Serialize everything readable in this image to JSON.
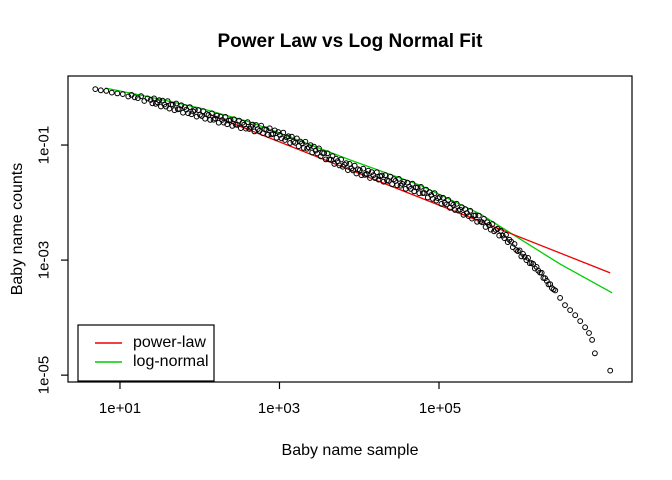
{
  "chart_data": {
    "type": "scatter",
    "title": "Power Law vs Log Normal Fit",
    "xlabel": "Baby name sample",
    "ylabel": "Baby name counts",
    "x_scale": "log",
    "y_scale": "log",
    "x_range": [
      2.23,
      26300000
    ],
    "y_range": [
      7.6e-06,
      1.585
    ],
    "grid": false,
    "x_ticks": [
      {
        "label": "1e+01",
        "value": 10
      },
      {
        "label": "1e+03",
        "value": 1000
      },
      {
        "label": "1e+05",
        "value": 100000
      }
    ],
    "y_ticks": [
      {
        "label": "1e-01",
        "value": 0.1
      },
      {
        "label": "1e-03",
        "value": 0.001
      },
      {
        "label": "1e-05",
        "value": 1e-05
      }
    ],
    "series": [
      {
        "name": "data",
        "type": "scatter",
        "marker": "open-circle",
        "color": "#000000",
        "points": [
          [
            4.9,
            0.94
          ],
          [
            6.5,
            0.87
          ],
          [
            8.7,
            0.8
          ],
          [
            12,
            0.74
          ],
          [
            18,
            0.66
          ],
          [
            32,
            0.54
          ],
          [
            56,
            0.44
          ],
          [
            100,
            0.35
          ],
          [
            180,
            0.28
          ],
          [
            320,
            0.23
          ],
          [
            570,
            0.19
          ],
          [
            1000,
            0.15
          ],
          [
            1800,
            0.108
          ],
          [
            2800,
            0.082
          ],
          [
            4300,
            0.059
          ],
          [
            6600,
            0.045
          ],
          [
            10000,
            0.035
          ],
          [
            18000,
            0.028
          ],
          [
            32000,
            0.022
          ],
          [
            58000,
            0.0165
          ],
          [
            100000,
            0.0115
          ],
          [
            183000,
            0.0077
          ],
          [
            330000,
            0.005
          ],
          [
            580000,
            0.003
          ],
          [
            780000,
            0.0021
          ],
          [
            1000000,
            0.0014
          ],
          [
            1400000,
            0.00092
          ],
          [
            1850000,
            0.00062
          ],
          [
            2300000,
            0.00041
          ],
          [
            2850000,
            0.00029
          ],
          [
            3300000,
            0.00022
          ],
          [
            3800000,
            0.000165
          ],
          [
            4400000,
            0.000135
          ],
          [
            5100000,
            0.00011
          ],
          [
            5900000,
            8.7e-05
          ],
          [
            6800000,
            6.8e-05
          ],
          [
            7600000,
            5.4e-05
          ],
          [
            8300000,
            4.1e-05
          ],
          [
            9000000,
            2.4e-05
          ],
          [
            14000000,
            1.2e-05
          ]
        ]
      },
      {
        "name": "power-law",
        "type": "line",
        "color": "#EE0000",
        "points": [
          [
            135,
            0.34
          ],
          [
            14000000,
            0.0006
          ]
        ]
      },
      {
        "name": "log-normal",
        "type": "line",
        "color": "#00CD00",
        "points": [
          [
            6.5,
            0.98
          ],
          [
            24,
            0.68
          ],
          [
            100,
            0.44
          ],
          [
            430,
            0.25
          ],
          [
            1350,
            0.138
          ],
          [
            7700,
            0.055
          ],
          [
            58000,
            0.02
          ],
          [
            330000,
            0.0063
          ],
          [
            1000000,
            0.0024
          ],
          [
            3300000,
            0.00085
          ],
          [
            14800000,
            0.00027
          ]
        ]
      }
    ],
    "legend": {
      "position": "bottom-left",
      "entries": [
        {
          "label": "power-law",
          "color": "#EE0000"
        },
        {
          "label": "log-normal",
          "color": "#00CD00"
        }
      ]
    }
  }
}
